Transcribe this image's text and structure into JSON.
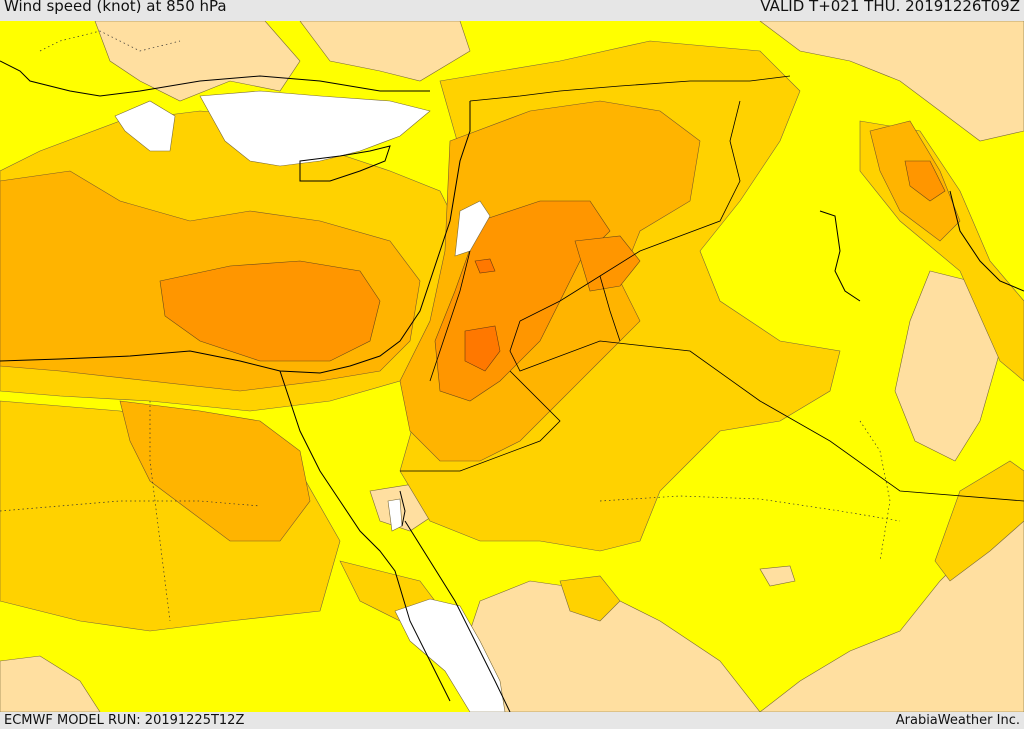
{
  "header": {
    "title": "Wind speed (knot) at 850 hPa",
    "valid": "VALID T+021 THU. 20191226T09Z"
  },
  "footer": {
    "model_run": "ECMWF MODEL RUN: 20191225T12Z",
    "credit": "ArabiaWeather Inc."
  },
  "colors": {
    "sea_no_data": "#ffffff",
    "band_light": "#ffdfa0",
    "band_yellow": "#ffff00",
    "band_gold": "#ffd200",
    "band_amber": "#ffb400",
    "band_orange": "#ff9600",
    "band_dark_orange": "#ff7800",
    "contour": "#555555",
    "border": "#000000"
  }
}
